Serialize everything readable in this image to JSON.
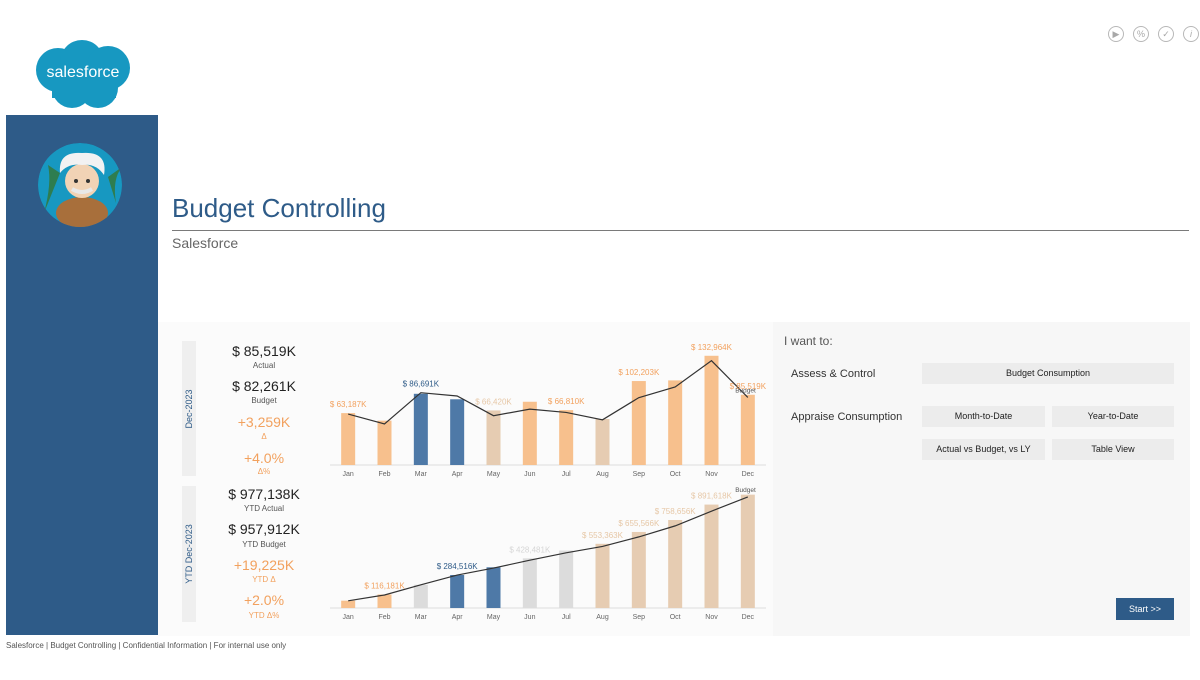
{
  "toolbar": {
    "icons": [
      {
        "name": "play-icon",
        "glyph": "▶"
      },
      {
        "name": "percent-icon",
        "glyph": "%"
      },
      {
        "name": "check-icon",
        "glyph": "✓"
      },
      {
        "name": "info-icon",
        "glyph": "i"
      }
    ]
  },
  "brand": {
    "logo_text": "salesforce",
    "logo_color": "#1798c1",
    "sidebar_color": "#2e5b88"
  },
  "header": {
    "title": "Budget Controlling",
    "subtitle": "Salesforce"
  },
  "monthly_panel": {
    "period_label": "Dec-2023",
    "actual_value": "$ 85,519K",
    "actual_label": "Actual",
    "budget_value": "$ 82,261K",
    "budget_label": "Budget",
    "delta_value": "+3,259K",
    "delta_label": "Δ",
    "delta_pct_value": "+4.0%",
    "delta_pct_label": "Δ%"
  },
  "ytd_panel": {
    "period_label": "YTD Dec-2023",
    "actual_value": "$ 977,138K",
    "actual_label": "YTD Actual",
    "budget_value": "$ 957,912K",
    "budget_label": "YTD Budget",
    "delta_value": "+19,225K",
    "delta_label": "YTD Δ",
    "delta_pct_value": "+2.0%",
    "delta_pct_label": "YTD Δ%"
  },
  "chart_data": [
    {
      "type": "bar",
      "categories": [
        "Jan",
        "Feb",
        "Mar",
        "Apr",
        "May",
        "Jun",
        "Jul",
        "Aug",
        "Sep",
        "Oct",
        "Nov",
        "Dec"
      ],
      "series": [
        {
          "values": [
            63187,
            54000,
            86691,
            80000,
            66420,
            77000,
            66810,
            56000,
            102203,
            103000,
            132964,
            85519
          ]
        },
        {
          "name": "Budget",
          "values": [
            62000,
            50000,
            88000,
            84000,
            60000,
            68000,
            64000,
            55000,
            82000,
            95000,
            127000,
            82261
          ]
        }
      ],
      "bar_colors": [
        "#f7c08d",
        "#f7c08d",
        "#4e79a7",
        "#4e79a7",
        "#e6ccb2",
        "#f7c08d",
        "#f7c08d",
        "#e6ccb2",
        "#f7c08d",
        "#f7c08d",
        "#f7c08d",
        "#f7c08d"
      ],
      "data_labels": [
        {
          "i": 0,
          "text": "$ 63,187K",
          "color": "#f2a15e"
        },
        {
          "i": 2,
          "text": "$ 86,691K",
          "color": "#2e5b88"
        },
        {
          "i": 4,
          "text": "$ 66,420K",
          "color": "#e6c7a6"
        },
        {
          "i": 6,
          "text": "$ 66,810K",
          "color": "#f2a15e"
        },
        {
          "i": 8,
          "text": "$ 102,203K",
          "color": "#f2a15e"
        },
        {
          "i": 10,
          "text": "$ 132,964K",
          "color": "#f2a15e"
        },
        {
          "i": 11,
          "text": "$ 85,519K",
          "color": "#f2a15e"
        }
      ],
      "line_label": "Budget",
      "ylim": [
        0,
        140000
      ]
    },
    {
      "type": "bar",
      "categories": [
        "Jan",
        "Feb",
        "Mar",
        "Apr",
        "May",
        "Jun",
        "Jul",
        "Aug",
        "Sep",
        "Oct",
        "Nov",
        "Dec"
      ],
      "series": [
        {
          "values": [
            63187,
            116181,
            200000,
            284516,
            350937,
            428481,
            495291,
            553363,
            655566,
            758656,
            891618,
            977138
          ]
        },
        {
          "name": "Budget",
          "values": [
            62000,
            112000,
            200000,
            284000,
            344000,
            412000,
            476000,
            531000,
            613000,
            708000,
            835000,
            957912
          ]
        }
      ],
      "bar_colors": [
        "#f7c08d",
        "#f7c08d",
        "#dcdcdc",
        "#4e79a7",
        "#4e79a7",
        "#dcdcdc",
        "#dcdcdc",
        "#e6ccb2",
        "#e6ccb2",
        "#e6ccb2",
        "#e6ccb2",
        "#e6ccb2"
      ],
      "data_labels": [
        {
          "i": 1,
          "text": "$ 116,181K",
          "color": "#f2a15e"
        },
        {
          "i": 3,
          "text": "$ 284,516K",
          "color": "#2e5b88"
        },
        {
          "i": 5,
          "text": "$ 428,481K",
          "color": "#d6d6d6"
        },
        {
          "i": 7,
          "text": "$ 553,363K",
          "color": "#e6c7a6"
        },
        {
          "i": 8,
          "text": "$ 655,566K",
          "color": "#e6c7a6"
        },
        {
          "i": 9,
          "text": "$ 758,656K",
          "color": "#e6c7a6"
        },
        {
          "i": 10,
          "text": "$ 891,618K",
          "color": "#e6c7a6"
        }
      ],
      "line_label": "Budget",
      "ylim": [
        0,
        1000000
      ]
    }
  ],
  "right_panel": {
    "heading": "I want to:",
    "row1_label": "Assess & Control",
    "budget_consumption": "Budget Consumption",
    "row2_label": "Appraise Consumption",
    "mtd": "Month-to-Date",
    "ytd": "Year-to-Date",
    "avb": "Actual vs Budget, vs LY",
    "table_view": "Table View",
    "start": "Start >>"
  },
  "footer": "Salesforce | Budget Controlling | Confidential Information | For internal use only"
}
